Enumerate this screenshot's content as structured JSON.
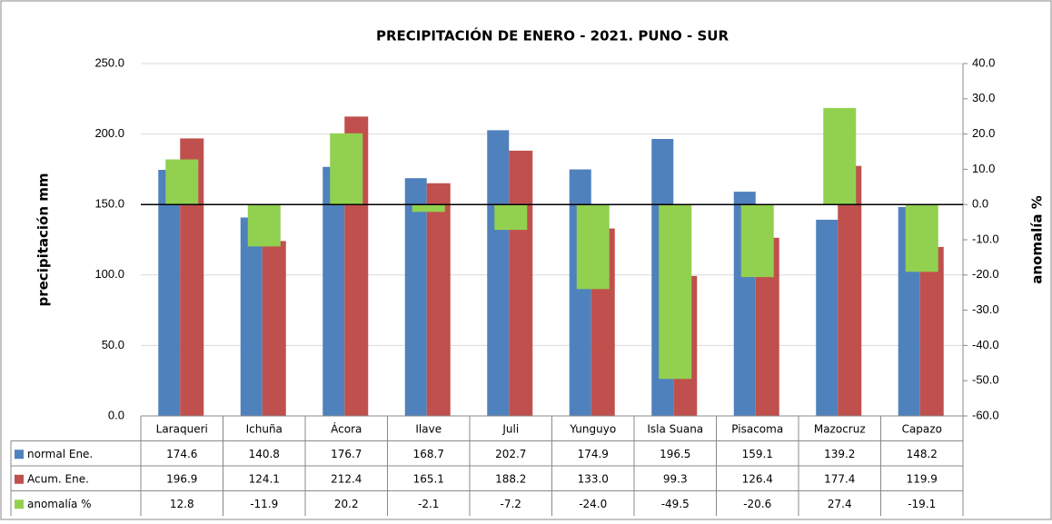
{
  "chart_data": {
    "type": "bar",
    "title": "PRECIPITACIÓN DE ENERO - 2021. PUNO - SUR",
    "y_label": "precipitación mm",
    "y2_label": "anomalía %",
    "categories": [
      "Laraqueri",
      "Ichuña",
      "Ácora",
      "Ilave",
      "Juli",
      "Yunguyo",
      "Isla Suana",
      "Pisacoma",
      "Mazocruz",
      "Capazo"
    ],
    "series": [
      {
        "name": "normal Ene.",
        "color": "#4f81bd",
        "values": [
          174.6,
          140.8,
          176.7,
          168.7,
          202.7,
          174.9,
          196.5,
          159.1,
          139.2,
          148.2
        ],
        "value_labels": [
          "174.6",
          "140.8",
          "176.7",
          "168.7",
          "202.7",
          "174.9",
          "196.5",
          "159.1",
          "139.2",
          "148.2"
        ]
      },
      {
        "name": "Acum. Ene.",
        "color": "#c0504d",
        "values": [
          196.9,
          124.1,
          212.4,
          165.1,
          188.2,
          133,
          99.3,
          126.4,
          177.4,
          119.9
        ],
        "value_labels": [
          "196.9",
          "124.1",
          "212.4",
          "165.1",
          "188.2",
          "133.0",
          "99.3",
          "126.4",
          "177.4",
          "119.9"
        ]
      },
      {
        "name": "anomalía %",
        "color": "#92d050",
        "axis": "y2",
        "values": [
          12.8,
          -11.9,
          20.2,
          -2.1,
          -7.2,
          -24,
          -49.5,
          -20.6,
          27.4,
          -19.1
        ],
        "value_labels": [
          "12.8",
          "-11.9",
          "20.2",
          "-2.1",
          "-7.2",
          "-24.0",
          "-49.5",
          "-20.6",
          "27.4",
          "-19.1"
        ]
      }
    ],
    "ylim": [
      0,
      250
    ],
    "yticks": [
      {
        "value": 0,
        "label": "0.0"
      },
      {
        "value": 50,
        "label": "50.0"
      },
      {
        "value": 100,
        "label": "100.0"
      },
      {
        "value": 150,
        "label": "150.0"
      },
      {
        "value": 200,
        "label": "200.0"
      },
      {
        "value": 250,
        "label": "250.0"
      }
    ],
    "y2lim": [
      -60,
      40
    ],
    "y2ticks": [
      {
        "value": -60,
        "label": "-60.0"
      },
      {
        "value": -50,
        "label": "-50.0"
      },
      {
        "value": -40,
        "label": "-40.0"
      },
      {
        "value": -30,
        "label": "-30.0"
      },
      {
        "value": -20,
        "label": "-20.0"
      },
      {
        "value": -10,
        "label": "-10.0"
      },
      {
        "value": 0,
        "label": "0.0"
      },
      {
        "value": 10,
        "label": "10.0"
      },
      {
        "value": 20,
        "label": "20.0"
      },
      {
        "value": 30,
        "label": "30.0"
      },
      {
        "value": 40,
        "label": "40.0"
      }
    ],
    "grid": true
  }
}
